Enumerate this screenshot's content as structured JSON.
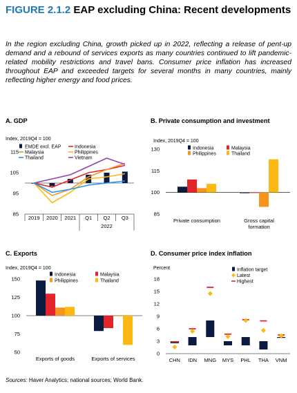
{
  "figure": {
    "number": "FIGURE 2.1.2",
    "title": "EAP excluding China: Recent developments",
    "description": "In the region excluding China, growth picked up in 2022, reflecting a release of pent-up demand and a rebound of services exports as many countries continued to lift pandemic-related mobility restrictions and travel bans. Consumer price inflation has increased throughout EAP and exceeded targets for several months in many countries, mainly reflecting higher energy and food prices.",
    "sources_label": "Sources:",
    "sources_text": "Haver Analytics; national sources; World Bank."
  },
  "colors": {
    "navy": "#0b1b3f",
    "red": "#e3242b",
    "orange": "#f7941d",
    "yellow": "#fdb913",
    "purple": "#8e44ad",
    "blue": "#2196f3",
    "title_blue": "#1f78b4"
  },
  "chart_data": [
    {
      "panel": "A. GDP",
      "type": "bar+line",
      "ylabel": "Index, 2019Q4 = 100",
      "ylim": [
        85,
        115
      ],
      "yticks": [
        85,
        95,
        105,
        115
      ],
      "categories": [
        "2019",
        "2020",
        "2021",
        "Q1",
        "Q2",
        "Q3"
      ],
      "group_label": "2022",
      "bars": {
        "name": "EMDE excl. EAP",
        "color": "#0b1b3f",
        "values": [
          100,
          98.5,
          102,
          104,
          105,
          105.5
        ]
      },
      "series": [
        {
          "name": "Indonesia",
          "color": "#e3242b",
          "values": [
            100,
            98,
            101.5,
            105,
            106.5,
            108.5
          ]
        },
        {
          "name": "Malaysia",
          "color": "#f7941d",
          "values": [
            100,
            94,
            97,
            103,
            106.5,
            109.5
          ]
        },
        {
          "name": "Philippines",
          "color": "#fdb913",
          "values": [
            100,
            90.5,
            95.5,
            102,
            103,
            104.5
          ]
        },
        {
          "name": "Vietnam",
          "color": "#8e44ad",
          "values": [
            100,
            102,
            104,
            108,
            112,
            109
          ]
        },
        {
          "name": "Thailand",
          "color": "#2196f3",
          "values": [
            100,
            95.5,
            97,
            99,
            100,
            101
          ]
        }
      ]
    },
    {
      "panel": "B. Private consumption and investment",
      "type": "bar",
      "ylabel": "Index, 2019Q4 = 100",
      "ylim": [
        85,
        130
      ],
      "yticks": [
        85,
        100,
        115,
        130
      ],
      "categories": [
        "Private consumption",
        "Gross capital formation"
      ],
      "series": [
        {
          "name": "Indonesia",
          "color": "#0b1b3f",
          "values": [
            104,
            99.5
          ]
        },
        {
          "name": "Malaysia",
          "color": "#e3242b",
          "values": [
            109,
            100
          ]
        },
        {
          "name": "Philippines",
          "color": "#f7941d",
          "values": [
            103,
            90
          ]
        },
        {
          "name": "Thailand",
          "color": "#fdb913",
          "values": [
            106,
            123
          ]
        }
      ]
    },
    {
      "panel": "C. Exports",
      "type": "bar",
      "ylabel": "Index, 2019Q4 = 100",
      "ylim": [
        50,
        150
      ],
      "yticks": [
        50,
        75,
        100,
        125,
        150
      ],
      "categories": [
        "Exports of goods",
        "Exports of services"
      ],
      "series": [
        {
          "name": "Indonesia",
          "color": "#0b1b3f",
          "values": [
            148,
            79
          ]
        },
        {
          "name": "Malaysia",
          "color": "#e3242b",
          "values": [
            130,
            83
          ]
        },
        {
          "name": "Philippines",
          "color": "#f7941d",
          "values": [
            111,
            100
          ]
        },
        {
          "name": "Thailand",
          "color": "#fdb913",
          "values": [
            112,
            60
          ]
        }
      ]
    },
    {
      "panel": "D. Consumer price index inflation",
      "type": "range+markers",
      "ylabel": "Percent",
      "ylim": [
        0,
        18
      ],
      "yticks": [
        0,
        3,
        6,
        9,
        12,
        15,
        18
      ],
      "categories": [
        "CHN",
        "IDN",
        "MNG",
        "MYS",
        "PHL",
        "THA",
        "VNM"
      ],
      "series": [
        {
          "name": "Inflation target",
          "color": "#0b1b3f",
          "ranges": [
            [
              2.5,
              3
            ],
            [
              2,
              4
            ],
            [
              4,
              8
            ],
            [
              2,
              3
            ],
            [
              2,
              4
            ],
            [
              1,
              3
            ],
            [
              4,
              4
            ]
          ]
        },
        {
          "name": "Latest",
          "color": "#fdb913",
          "values": [
            1.6,
            5.4,
            14.5,
            4.1,
            8,
            5.6,
            4.3
          ]
        },
        {
          "name": "Highest",
          "color": "#e3242b",
          "values": [
            2.8,
            6,
            16,
            4.7,
            8.2,
            7.9,
            4.5
          ]
        }
      ]
    }
  ]
}
